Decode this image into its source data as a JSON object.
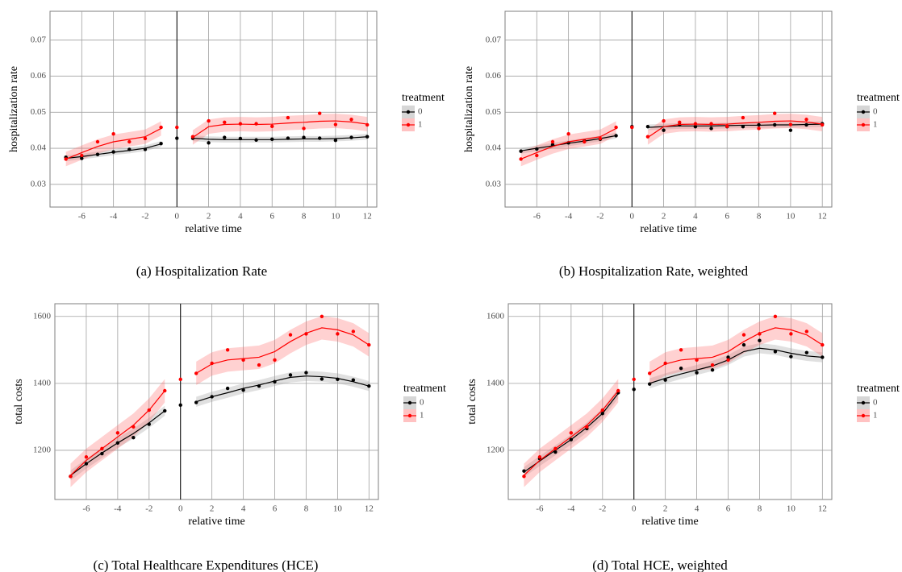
{
  "chart_data": [
    {
      "type": "line",
      "caption": "(a)  Hospitalization Rate",
      "xlabel": "relative time",
      "ylabel": "hospitalization rate",
      "x": [
        -7,
        -6,
        -5,
        -4,
        -3,
        -2,
        -1,
        0,
        1,
        2,
        3,
        4,
        5,
        6,
        7,
        8,
        9,
        10,
        11,
        12
      ],
      "xlim": [
        -8,
        12.6
      ],
      "xticks": [
        -6,
        -4,
        -2,
        0,
        2,
        4,
        6,
        8,
        10,
        12
      ],
      "ylim": [
        0.0237,
        0.078
      ],
      "yticks": [
        0.03,
        0.04,
        0.05,
        0.06,
        0.07
      ],
      "vline": 0,
      "grid": true,
      "legend_title": "treatment",
      "series": [
        {
          "name": "0",
          "color": "#000000",
          "band_color": "#999999",
          "band": 0.0008,
          "values": [
            0.0375,
            0.0372,
            0.0383,
            0.039,
            0.0397,
            0.0397,
            0.0413,
            0.0428,
            0.0428,
            0.0415,
            0.043,
            0.0427,
            0.0423,
            0.0425,
            0.0428,
            0.043,
            0.0428,
            0.0422,
            0.043,
            0.0432
          ],
          "fit": [
            0.0372,
            0.0377,
            0.0383,
            0.0389,
            0.0394,
            0.04,
            0.0412,
            null,
            0.0428,
            0.0425,
            0.0424,
            0.0424,
            0.0424,
            0.0424,
            0.0425,
            0.0426,
            0.0426,
            0.0427,
            0.0429,
            0.0432
          ]
        },
        {
          "name": "1",
          "color": "#ff0000",
          "band_color": "#ff6666",
          "band": 0.002,
          "values": [
            0.037,
            0.038,
            0.0418,
            0.044,
            0.0418,
            0.0427,
            0.0458,
            0.0458,
            0.0432,
            0.0476,
            0.0472,
            0.0468,
            0.0468,
            0.0461,
            0.0485,
            0.0455,
            0.0497,
            0.0466,
            0.048,
            0.0465
          ],
          "fit": [
            0.037,
            0.0388,
            0.0405,
            0.0418,
            0.0425,
            0.0432,
            0.0455,
            null,
            0.043,
            0.046,
            0.0466,
            0.0467,
            0.0466,
            0.0467,
            0.047,
            0.0472,
            0.0475,
            0.0476,
            0.0473,
            0.0467
          ]
        }
      ]
    },
    {
      "type": "line",
      "caption": "(b)  Hospitalization Rate, weighted",
      "xlabel": "relative time",
      "ylabel": "hospitalization rate",
      "x": [
        -7,
        -6,
        -5,
        -4,
        -3,
        -2,
        -1,
        0,
        1,
        2,
        3,
        4,
        5,
        6,
        7,
        8,
        9,
        10,
        11,
        12
      ],
      "xlim": [
        -8,
        12.6
      ],
      "xticks": [
        -6,
        -4,
        -2,
        0,
        2,
        4,
        6,
        8,
        10,
        12
      ],
      "ylim": [
        0.0237,
        0.078
      ],
      "yticks": [
        0.03,
        0.04,
        0.05,
        0.06,
        0.07
      ],
      "vline": 0,
      "grid": true,
      "legend_title": "treatment",
      "series": [
        {
          "name": "0",
          "color": "#000000",
          "band_color": "#999999",
          "band": 0.0008,
          "values": [
            0.0392,
            0.0398,
            0.041,
            0.0415,
            0.042,
            0.0425,
            0.0435,
            0.046,
            0.046,
            0.045,
            0.0465,
            0.046,
            0.0455,
            0.046,
            0.046,
            0.0465,
            0.0465,
            0.045,
            0.0465,
            0.0468
          ],
          "fit": [
            0.0393,
            0.04,
            0.0407,
            0.0414,
            0.042,
            0.0427,
            0.0435,
            null,
            0.0458,
            0.046,
            0.0462,
            0.0462,
            0.0462,
            0.0463,
            0.0464,
            0.0464,
            0.0465,
            0.0465,
            0.0466,
            0.0467
          ]
        },
        {
          "name": "1",
          "color": "#ff0000",
          "band_color": "#ff6666",
          "band": 0.002,
          "values": [
            0.037,
            0.038,
            0.0418,
            0.044,
            0.0418,
            0.0427,
            0.0458,
            0.0458,
            0.0432,
            0.0476,
            0.0472,
            0.0468,
            0.0468,
            0.0461,
            0.0485,
            0.0455,
            0.0497,
            0.0466,
            0.048,
            0.0465
          ],
          "fit": [
            0.037,
            0.0388,
            0.0405,
            0.0418,
            0.0425,
            0.0432,
            0.0455,
            null,
            0.043,
            0.046,
            0.0466,
            0.0467,
            0.0466,
            0.0467,
            0.047,
            0.0472,
            0.0475,
            0.0476,
            0.0473,
            0.0467
          ]
        }
      ]
    },
    {
      "type": "line",
      "caption": "(c)  Total Healthcare Expenditures (HCE)",
      "xlabel": "relative time",
      "ylabel": "total costs",
      "x": [
        -7,
        -6,
        -5,
        -4,
        -3,
        -2,
        -1,
        0,
        1,
        2,
        3,
        4,
        5,
        6,
        7,
        8,
        9,
        10,
        11,
        12
      ],
      "xlim": [
        -8,
        12.6
      ],
      "xticks": [
        -6,
        -4,
        -2,
        0,
        2,
        4,
        6,
        8,
        10,
        12
      ],
      "ylim": [
        1053,
        1638
      ],
      "yticks": [
        1200,
        1400,
        1600
      ],
      "vline": 0,
      "grid": true,
      "legend_title": "treatment",
      "series": [
        {
          "name": "0",
          "color": "#000000",
          "band_color": "#999999",
          "band": 15,
          "values": [
            1122,
            1160,
            1190,
            1222,
            1238,
            1278,
            1318,
            1335,
            1343,
            1360,
            1385,
            1380,
            1392,
            1405,
            1425,
            1432,
            1413,
            1412,
            1410,
            1392
          ],
          "fit": [
            1125,
            1160,
            1192,
            1222,
            1250,
            1282,
            1318,
            null,
            1345,
            1360,
            1372,
            1385,
            1395,
            1407,
            1418,
            1422,
            1420,
            1415,
            1405,
            1392
          ]
        },
        {
          "name": "1",
          "color": "#ff0000",
          "band_color": "#ff6666",
          "band": 35,
          "values": [
            1122,
            1180,
            1205,
            1252,
            1270,
            1320,
            1378,
            1412,
            1430,
            1460,
            1500,
            1470,
            1455,
            1470,
            1545,
            1548,
            1600,
            1548,
            1555,
            1515
          ],
          "fit": [
            1125,
            1170,
            1205,
            1240,
            1275,
            1320,
            1378,
            null,
            1430,
            1458,
            1470,
            1474,
            1478,
            1495,
            1525,
            1550,
            1566,
            1560,
            1545,
            1515
          ]
        }
      ]
    },
    {
      "type": "line",
      "caption": "(d)  Total HCE, weighted",
      "xlabel": "relative time",
      "ylabel": "total costs",
      "x": [
        -7,
        -6,
        -5,
        -4,
        -3,
        -2,
        -1,
        0,
        1,
        2,
        3,
        4,
        5,
        6,
        7,
        8,
        9,
        10,
        11,
        12
      ],
      "xlim": [
        -8,
        12.6
      ],
      "xticks": [
        -6,
        -4,
        -2,
        0,
        2,
        4,
        6,
        8,
        10,
        12
      ],
      "ylim": [
        1053,
        1638
      ],
      "yticks": [
        1200,
        1400,
        1600
      ],
      "vline": 0,
      "grid": true,
      "legend_title": "treatment",
      "series": [
        {
          "name": "0",
          "color": "#000000",
          "band_color": "#999999",
          "band": 15,
          "values": [
            1138,
            1175,
            1195,
            1232,
            1265,
            1310,
            1372,
            1382,
            1398,
            1410,
            1445,
            1432,
            1440,
            1478,
            1515,
            1528,
            1495,
            1480,
            1492,
            1478
          ],
          "fit": [
            1135,
            1168,
            1200,
            1232,
            1268,
            1310,
            1370,
            null,
            1400,
            1415,
            1428,
            1440,
            1452,
            1470,
            1495,
            1505,
            1500,
            1490,
            1482,
            1478
          ]
        },
        {
          "name": "1",
          "color": "#ff0000",
          "band_color": "#ff6666",
          "band": 35,
          "values": [
            1122,
            1180,
            1205,
            1252,
            1270,
            1320,
            1378,
            1412,
            1430,
            1460,
            1500,
            1470,
            1455,
            1470,
            1545,
            1548,
            1600,
            1548,
            1555,
            1515
          ],
          "fit": [
            1125,
            1170,
            1205,
            1240,
            1275,
            1320,
            1378,
            null,
            1430,
            1458,
            1470,
            1474,
            1478,
            1495,
            1525,
            1550,
            1566,
            1560,
            1545,
            1515
          ]
        }
      ]
    }
  ]
}
